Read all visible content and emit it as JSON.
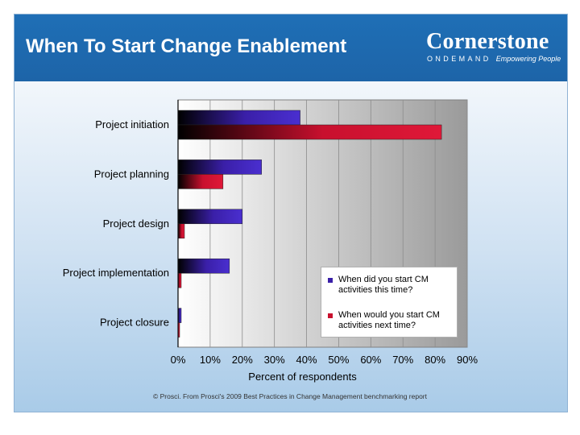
{
  "title": "When To Start Change Enablement",
  "logo": {
    "word": "Cornerstone",
    "sub": "ONDEMAND",
    "tagline": "Empowering People"
  },
  "footer": "© Prosci. From Prosci's 2009 Best Practices in Change Management benchmarking report",
  "colors": {
    "series1": "#3a1fa8",
    "series2": "#c8102e",
    "header": "#1f6fb6"
  },
  "chart_data": {
    "type": "bar",
    "orientation": "horizontal",
    "categories": [
      "Project initiation",
      "Project planning",
      "Project design",
      "Project implementation",
      "Project closure"
    ],
    "series": [
      {
        "name": "When did you start CM activities this time?",
        "values": [
          38,
          26,
          20,
          16,
          1
        ]
      },
      {
        "name": "When would you start CM activities next time?",
        "values": [
          82,
          14,
          2,
          1,
          0.5
        ]
      }
    ],
    "xlabel": "Percent of respondents",
    "ylabel": "",
    "xlim": [
      0,
      90
    ],
    "ticks": [
      "0%",
      "10%",
      "20%",
      "30%",
      "40%",
      "50%",
      "60%",
      "70%",
      "80%",
      "90%"
    ],
    "grid": true,
    "legend": "bottom-right"
  }
}
